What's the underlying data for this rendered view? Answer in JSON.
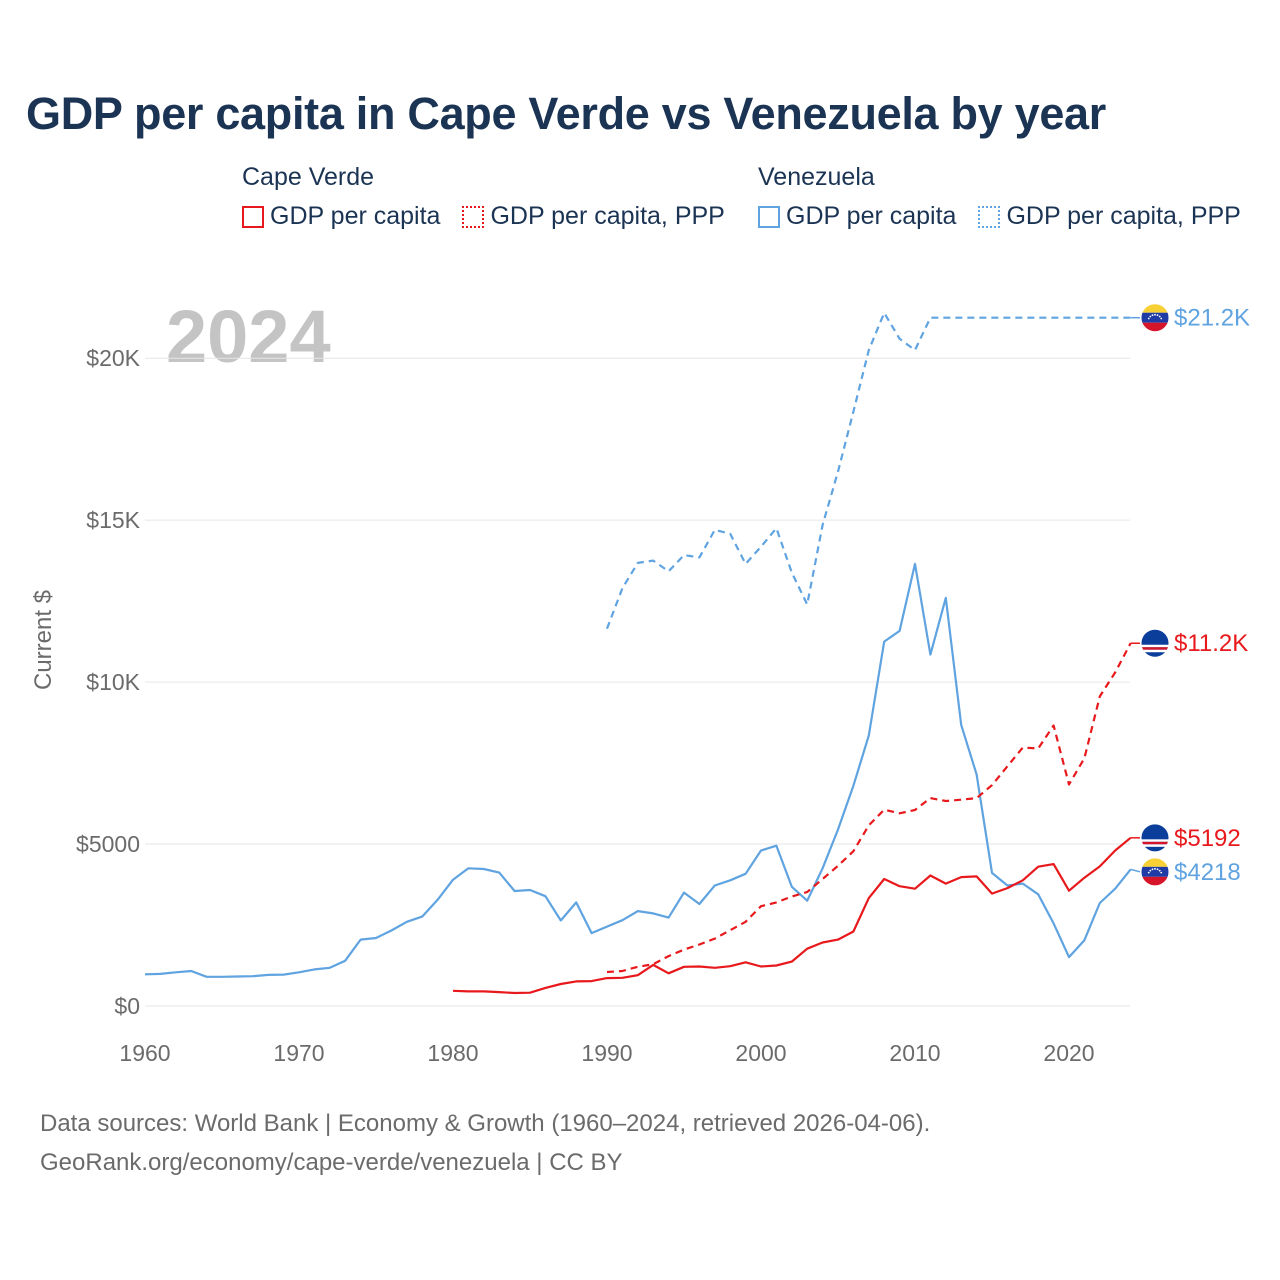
{
  "title": "GDP per capita in Cape Verde vs Venezuela by year",
  "legend": {
    "groups": [
      {
        "name": "Cape Verde",
        "items": [
          "GDP per capita",
          "GDP per capita, PPP"
        ]
      },
      {
        "name": "Venezuela",
        "items": [
          "GDP per capita",
          "GDP per capita, PPP"
        ]
      }
    ]
  },
  "year_watermark": "2024",
  "footer": {
    "line1": "Data sources: World Bank | Economy & Growth (1960–2024, retrieved 2026-04-06).",
    "line2": "GeoRank.org/economy/cape-verde/venezuela | CC BY"
  },
  "colors": {
    "cape_verde": "#e8191c",
    "venezuela": "#5fa3e0",
    "grid": "#e6e6e6",
    "tick": "#6b6b6b",
    "title": "#1b3454",
    "watermark": "#c4c4c4"
  },
  "chart_data": {
    "type": "line",
    "title": "GDP per capita in Cape Verde vs Venezuela by year",
    "xlabel": "",
    "ylabel": "Current $",
    "xlim": [
      1960,
      2024
    ],
    "ylim": [
      0,
      22000
    ],
    "x_ticks": [
      1960,
      1970,
      1980,
      1990,
      2000,
      2010,
      2020
    ],
    "x_tick_labels": [
      "1960",
      "1970",
      "1980",
      "1990",
      "2000",
      "2010",
      "2020"
    ],
    "y_ticks": [
      0,
      5000,
      10000,
      15000,
      20000
    ],
    "y_tick_labels": [
      "$0",
      "$5000",
      "$10K",
      "$15K",
      "$20K"
    ],
    "grid": true,
    "series": [
      {
        "name": "Venezuela GDP per capita",
        "country": "Venezuela",
        "style": "solid",
        "end_label": "$4218",
        "points": [
          [
            1960,
            980
          ],
          [
            1961,
            990
          ],
          [
            1962,
            1040
          ],
          [
            1963,
            1080
          ],
          [
            1964,
            900
          ],
          [
            1965,
            900
          ],
          [
            1966,
            910
          ],
          [
            1967,
            920
          ],
          [
            1968,
            960
          ],
          [
            1969,
            970
          ],
          [
            1970,
            1040
          ],
          [
            1971,
            1130
          ],
          [
            1972,
            1180
          ],
          [
            1973,
            1400
          ],
          [
            1974,
            2050
          ],
          [
            1975,
            2100
          ],
          [
            1976,
            2330
          ],
          [
            1977,
            2600
          ],
          [
            1978,
            2760
          ],
          [
            1979,
            3280
          ],
          [
            1980,
            3900
          ],
          [
            1981,
            4250
          ],
          [
            1982,
            4230
          ],
          [
            1983,
            4120
          ],
          [
            1984,
            3550
          ],
          [
            1985,
            3580
          ],
          [
            1986,
            3390
          ],
          [
            1987,
            2640
          ],
          [
            1988,
            3200
          ],
          [
            1989,
            2250
          ],
          [
            1990,
            2450
          ],
          [
            1991,
            2650
          ],
          [
            1992,
            2930
          ],
          [
            1993,
            2860
          ],
          [
            1994,
            2730
          ],
          [
            1995,
            3500
          ],
          [
            1996,
            3150
          ],
          [
            1997,
            3720
          ],
          [
            1998,
            3880
          ],
          [
            1999,
            4080
          ],
          [
            2000,
            4800
          ],
          [
            2001,
            4950
          ],
          [
            2002,
            3680
          ],
          [
            2003,
            3250
          ],
          [
            2004,
            4250
          ],
          [
            2005,
            5450
          ],
          [
            2006,
            6800
          ],
          [
            2007,
            8350
          ],
          [
            2008,
            11250
          ],
          [
            2009,
            11580
          ],
          [
            2010,
            13650
          ],
          [
            2011,
            10850
          ],
          [
            2012,
            12600
          ],
          [
            2013,
            8680
          ],
          [
            2014,
            7150
          ],
          [
            2015,
            4110
          ],
          [
            2016,
            3720
          ],
          [
            2017,
            3780
          ],
          [
            2018,
            3450
          ],
          [
            2019,
            2550
          ],
          [
            2020,
            1510
          ],
          [
            2021,
            2030
          ],
          [
            2022,
            3180
          ],
          [
            2023,
            3620
          ],
          [
            2024,
            4218
          ]
        ]
      },
      {
        "name": "Venezuela GDP per capita, PPP",
        "country": "Venezuela",
        "style": "dashed",
        "end_label": "$21.2K",
        "points": [
          [
            1990,
            11650
          ],
          [
            1991,
            12900
          ],
          [
            1992,
            13680
          ],
          [
            1993,
            13750
          ],
          [
            1994,
            13420
          ],
          [
            1995,
            13920
          ],
          [
            1996,
            13850
          ],
          [
            1997,
            14700
          ],
          [
            1998,
            14580
          ],
          [
            1999,
            13650
          ],
          [
            2000,
            14180
          ],
          [
            2001,
            14750
          ],
          [
            2002,
            13380
          ],
          [
            2003,
            12400
          ],
          [
            2004,
            14850
          ],
          [
            2005,
            16500
          ],
          [
            2006,
            18350
          ],
          [
            2007,
            20250
          ],
          [
            2008,
            21400
          ],
          [
            2009,
            20600
          ],
          [
            2010,
            20250
          ],
          [
            2011,
            21250
          ],
          [
            2012,
            21250
          ],
          [
            2013,
            21250
          ],
          [
            2014,
            21250
          ],
          [
            2015,
            21250
          ],
          [
            2016,
            21250
          ],
          [
            2017,
            21250
          ],
          [
            2018,
            21250
          ],
          [
            2019,
            21250
          ],
          [
            2020,
            21250
          ],
          [
            2021,
            21250
          ],
          [
            2022,
            21250
          ],
          [
            2023,
            21250
          ],
          [
            2024,
            21250
          ]
        ]
      },
      {
        "name": "Cape Verde GDP per capita",
        "country": "Cape Verde",
        "style": "solid",
        "end_label": "$5192",
        "points": [
          [
            1980,
            470
          ],
          [
            1981,
            450
          ],
          [
            1982,
            450
          ],
          [
            1983,
            430
          ],
          [
            1984,
            400
          ],
          [
            1985,
            410
          ],
          [
            1986,
            560
          ],
          [
            1987,
            680
          ],
          [
            1988,
            760
          ],
          [
            1989,
            770
          ],
          [
            1990,
            860
          ],
          [
            1991,
            870
          ],
          [
            1992,
            950
          ],
          [
            1993,
            1270
          ],
          [
            1994,
            1010
          ],
          [
            1995,
            1210
          ],
          [
            1996,
            1220
          ],
          [
            1997,
            1180
          ],
          [
            1998,
            1230
          ],
          [
            1999,
            1350
          ],
          [
            2000,
            1220
          ],
          [
            2001,
            1250
          ],
          [
            2002,
            1370
          ],
          [
            2003,
            1770
          ],
          [
            2004,
            1960
          ],
          [
            2005,
            2050
          ],
          [
            2006,
            2300
          ],
          [
            2007,
            3330
          ],
          [
            2008,
            3920
          ],
          [
            2009,
            3700
          ],
          [
            2010,
            3620
          ],
          [
            2011,
            4030
          ],
          [
            2012,
            3780
          ],
          [
            2013,
            3980
          ],
          [
            2014,
            4000
          ],
          [
            2015,
            3470
          ],
          [
            2016,
            3640
          ],
          [
            2017,
            3880
          ],
          [
            2018,
            4300
          ],
          [
            2019,
            4380
          ],
          [
            2020,
            3560
          ],
          [
            2021,
            3960
          ],
          [
            2022,
            4310
          ],
          [
            2023,
            4800
          ],
          [
            2024,
            5192
          ]
        ]
      },
      {
        "name": "Cape Verde GDP per capita, PPP",
        "country": "Cape Verde",
        "style": "dashed",
        "end_label": "$11.2K",
        "points": [
          [
            1990,
            1050
          ],
          [
            1991,
            1080
          ],
          [
            1992,
            1210
          ],
          [
            1993,
            1290
          ],
          [
            1994,
            1540
          ],
          [
            1995,
            1740
          ],
          [
            1996,
            1900
          ],
          [
            1997,
            2080
          ],
          [
            1998,
            2340
          ],
          [
            1999,
            2600
          ],
          [
            2000,
            3080
          ],
          [
            2001,
            3200
          ],
          [
            2002,
            3380
          ],
          [
            2003,
            3520
          ],
          [
            2004,
            3920
          ],
          [
            2005,
            4330
          ],
          [
            2006,
            4780
          ],
          [
            2007,
            5580
          ],
          [
            2008,
            6060
          ],
          [
            2009,
            5950
          ],
          [
            2010,
            6050
          ],
          [
            2011,
            6420
          ],
          [
            2012,
            6330
          ],
          [
            2013,
            6370
          ],
          [
            2014,
            6420
          ],
          [
            2015,
            6820
          ],
          [
            2016,
            7400
          ],
          [
            2017,
            7980
          ],
          [
            2018,
            7950
          ],
          [
            2019,
            8660
          ],
          [
            2020,
            6840
          ],
          [
            2021,
            7650
          ],
          [
            2022,
            9560
          ],
          [
            2023,
            10300
          ],
          [
            2024,
            11200
          ]
        ]
      }
    ]
  }
}
